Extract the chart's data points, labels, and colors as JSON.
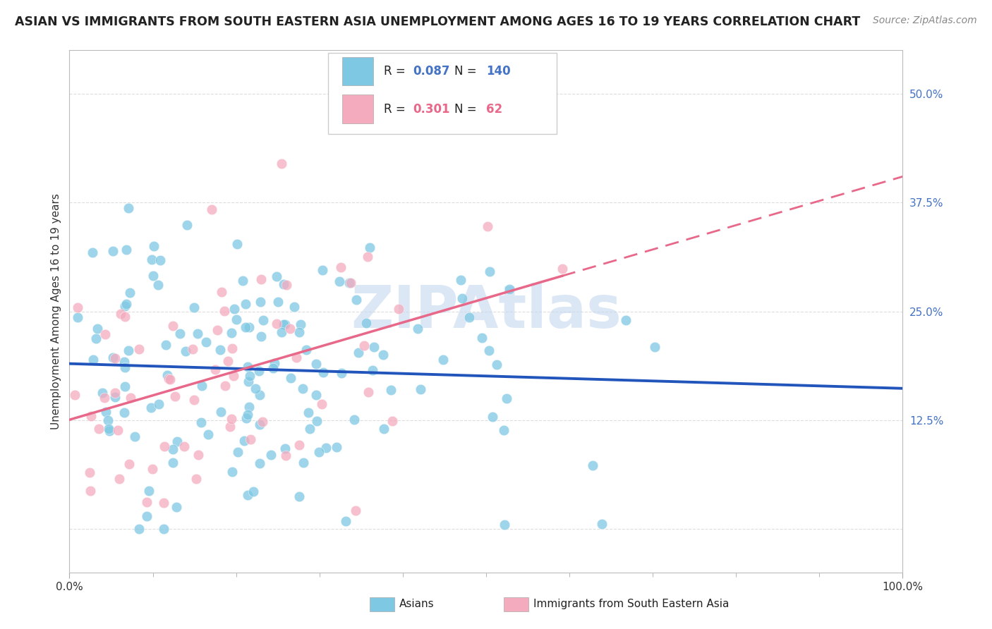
{
  "title": "ASIAN VS IMMIGRANTS FROM SOUTH EASTERN ASIA UNEMPLOYMENT AMONG AGES 16 TO 19 YEARS CORRELATION CHART",
  "source": "Source: ZipAtlas.com",
  "ylabel": "Unemployment Among Ages 16 to 19 years",
  "xlim": [
    0,
    100
  ],
  "ylim": [
    -5,
    55
  ],
  "yticks": [
    0,
    12.5,
    25.0,
    37.5,
    50.0
  ],
  "ytick_labels": [
    "",
    "12.5%",
    "25.0%",
    "37.5%",
    "50.0%"
  ],
  "xtick_labels": [
    "0.0%",
    "100.0%"
  ],
  "blue_R": 0.087,
  "blue_N": 140,
  "pink_R": 0.301,
  "pink_N": 62,
  "blue_color": "#7EC8E3",
  "pink_color": "#F4ABBE",
  "blue_line_color": "#2255BB",
  "pink_line_color": "#E8688A",
  "background_color": "#FFFFFF",
  "grid_color": "#DDDDDD",
  "title_fontsize": 12.5,
  "label_fontsize": 11,
  "tick_fontsize": 11,
  "source_fontsize": 10,
  "watermark_text": "ZIPAtlas",
  "watermark_color": "#C5D8F0",
  "watermark_fontsize": 60,
  "legend_blue_R": "0.087",
  "legend_blue_N": "140",
  "legend_pink_R": "0.301",
  "legend_pink_N": "62",
  "bottom_legend_blue": "Asians",
  "bottom_legend_pink": "Immigrants from South Eastern Asia"
}
